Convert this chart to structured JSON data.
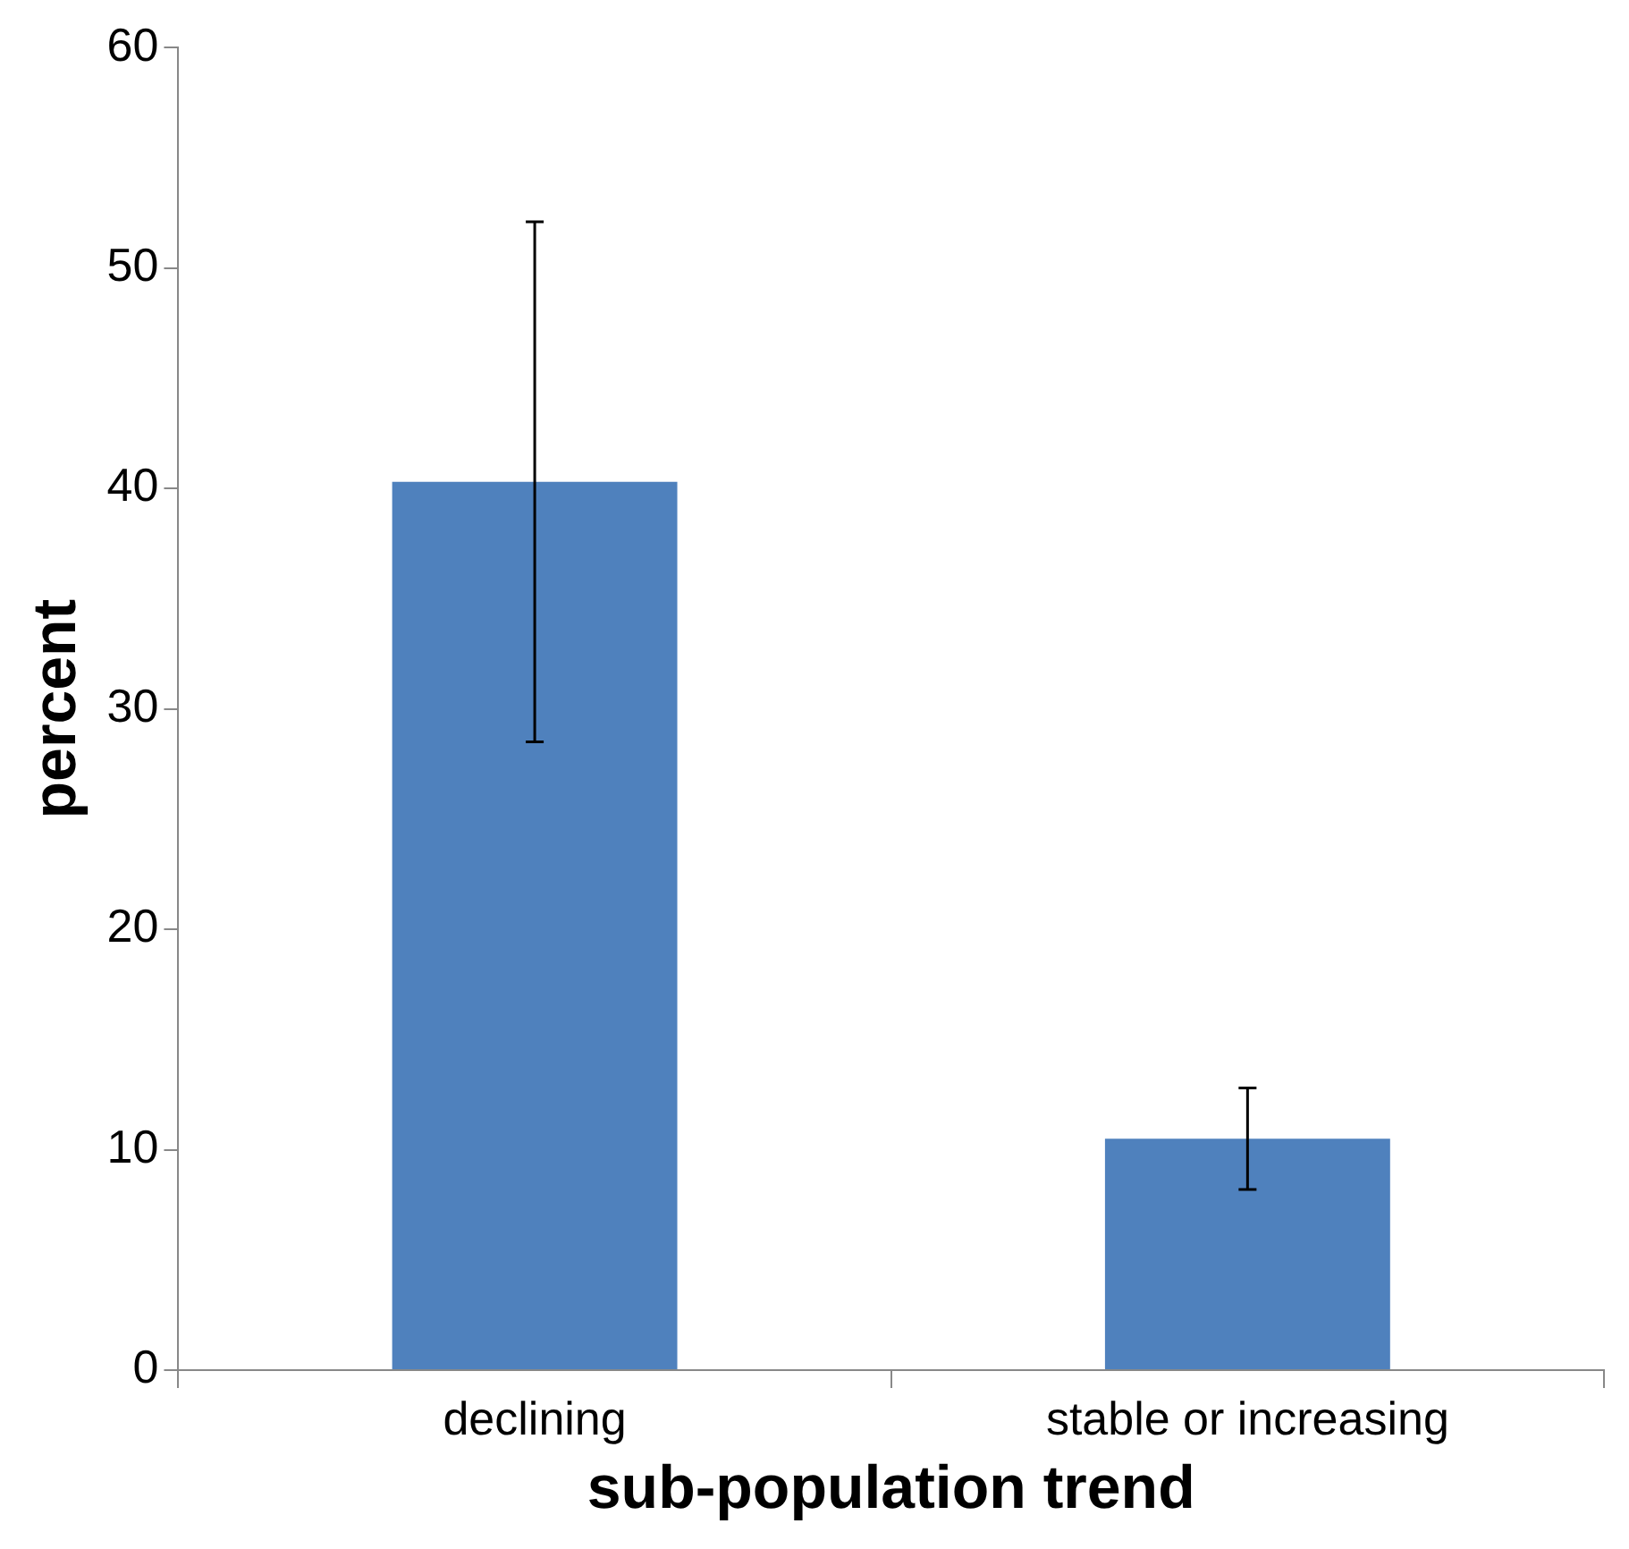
{
  "chart_data": {
    "type": "bar",
    "xlabel": "sub-population trend",
    "ylabel": "percent",
    "categories": [
      "declining",
      "stable or increasing"
    ],
    "series": [
      {
        "color": "#4f81bd",
        "values": [
          40.3,
          10.5
        ],
        "errors": [
          [
            28.5,
            52.1
          ],
          [
            8.2,
            12.8
          ]
        ]
      }
    ],
    "ylim": [
      0,
      60
    ],
    "yticks": [
      0,
      10,
      20,
      30,
      40,
      50,
      60
    ],
    "grid": false,
    "legend": false
  }
}
